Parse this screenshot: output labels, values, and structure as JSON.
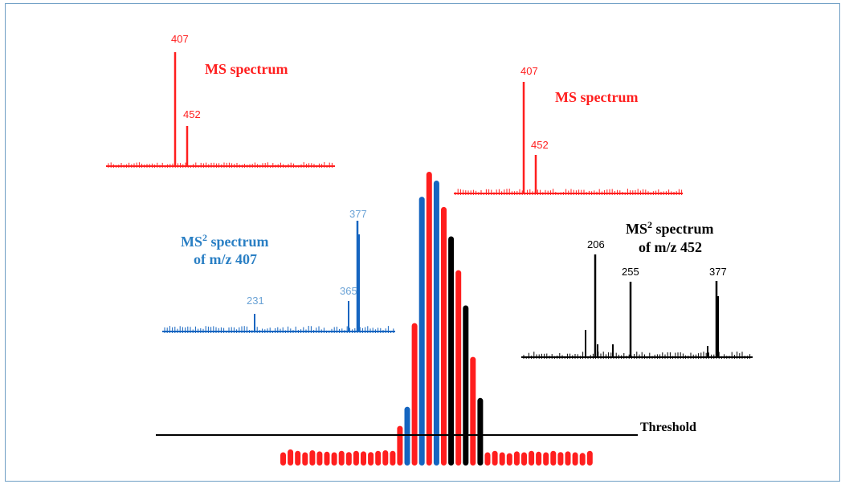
{
  "colors": {
    "red": "#ff1e1e",
    "blue": "#1565c0",
    "blue_text": "#2a7fc4",
    "light_blue": "#6ba3d6",
    "black": "#000000",
    "frame": "#6e9ec4"
  },
  "labels": {
    "threshold": "Threshold",
    "ms1_title": "MS spectrum",
    "ms2_title": "MS spectrum",
    "ms2a_line1_prefix": "MS",
    "ms2a_line1_sup": "2",
    "ms2a_line1_suffix": " spectrum",
    "ms2a_line2": "of m/z 407",
    "ms2b_line1_prefix": "MS",
    "ms2b_line1_sup": "2",
    "ms2b_line1_suffix": " spectrum",
    "ms2b_line2": "of m/z 452"
  },
  "spectra": {
    "ms1_left": {
      "peaks": [
        {
          "label": "407"
        },
        {
          "label": "452"
        }
      ]
    },
    "ms1_right": {
      "peaks": [
        {
          "label": "407"
        },
        {
          "label": "452"
        }
      ]
    },
    "ms2_407": {
      "peaks": [
        {
          "label": "231"
        },
        {
          "label": "365"
        },
        {
          "label": "377"
        }
      ]
    },
    "ms2_452": {
      "peaks": [
        {
          "label": "206"
        },
        {
          "label": "255"
        },
        {
          "label": "377"
        }
      ]
    }
  },
  "chromatogram": {
    "bars": [
      {
        "h": 0.045,
        "c": "red"
      },
      {
        "h": 0.055,
        "c": "red"
      },
      {
        "h": 0.05,
        "c": "red"
      },
      {
        "h": 0.045,
        "c": "red"
      },
      {
        "h": 0.052,
        "c": "red"
      },
      {
        "h": 0.048,
        "c": "red"
      },
      {
        "h": 0.047,
        "c": "red"
      },
      {
        "h": 0.045,
        "c": "red"
      },
      {
        "h": 0.05,
        "c": "red"
      },
      {
        "h": 0.046,
        "c": "red"
      },
      {
        "h": 0.05,
        "c": "red"
      },
      {
        "h": 0.048,
        "c": "red"
      },
      {
        "h": 0.046,
        "c": "red"
      },
      {
        "h": 0.05,
        "c": "red"
      },
      {
        "h": 0.052,
        "c": "red"
      },
      {
        "h": 0.05,
        "c": "red"
      },
      {
        "h": 0.135,
        "c": "red"
      },
      {
        "h": 0.2,
        "c": "blue"
      },
      {
        "h": 0.485,
        "c": "red"
      },
      {
        "h": 0.915,
        "c": "blue"
      },
      {
        "h": 1.0,
        "c": "red"
      },
      {
        "h": 0.97,
        "c": "blue"
      },
      {
        "h": 0.88,
        "c": "red"
      },
      {
        "h": 0.78,
        "c": "black"
      },
      {
        "h": 0.665,
        "c": "red"
      },
      {
        "h": 0.545,
        "c": "black"
      },
      {
        "h": 0.37,
        "c": "red"
      },
      {
        "h": 0.23,
        "c": "black"
      },
      {
        "h": 0.045,
        "c": "red"
      },
      {
        "h": 0.05,
        "c": "red"
      },
      {
        "h": 0.045,
        "c": "red"
      },
      {
        "h": 0.042,
        "c": "red"
      },
      {
        "h": 0.048,
        "c": "red"
      },
      {
        "h": 0.045,
        "c": "red"
      },
      {
        "h": 0.05,
        "c": "red"
      },
      {
        "h": 0.047,
        "c": "red"
      },
      {
        "h": 0.045,
        "c": "red"
      },
      {
        "h": 0.05,
        "c": "red"
      },
      {
        "h": 0.046,
        "c": "red"
      },
      {
        "h": 0.048,
        "c": "red"
      },
      {
        "h": 0.045,
        "c": "red"
      },
      {
        "h": 0.043,
        "c": "red"
      },
      {
        "h": 0.05,
        "c": "red"
      }
    ]
  }
}
